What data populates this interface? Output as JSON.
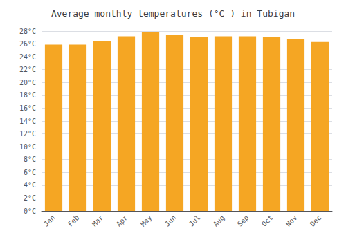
{
  "chart_data": {
    "type": "bar",
    "title": "Average monthly temperatures (°C ) in Tubigan",
    "categories": [
      "Jan",
      "Feb",
      "Mar",
      "Apr",
      "May",
      "Jun",
      "Jul",
      "Aug",
      "Sep",
      "Oct",
      "Nov",
      "Dec"
    ],
    "values": [
      25.9,
      25.9,
      26.5,
      27.2,
      27.8,
      27.4,
      27.1,
      27.2,
      27.2,
      27.1,
      26.8,
      26.3
    ],
    "color": "#F5A623",
    "ylim": [
      0,
      28
    ],
    "yticks": [
      {
        "value": 0,
        "label": "0°C"
      },
      {
        "value": 2,
        "label": "2°C"
      },
      {
        "value": 4,
        "label": "4°C"
      },
      {
        "value": 6,
        "label": "6°C"
      },
      {
        "value": 8,
        "label": "8°C"
      },
      {
        "value": 10,
        "label": "10°C"
      },
      {
        "value": 12,
        "label": "12°C"
      },
      {
        "value": 14,
        "label": "14°C"
      },
      {
        "value": 16,
        "label": "16°C"
      },
      {
        "value": 18,
        "label": "18°C"
      },
      {
        "value": 20,
        "label": "20°C"
      },
      {
        "value": 22,
        "label": "22°C"
      },
      {
        "value": 24,
        "label": "24°C"
      },
      {
        "value": 26,
        "label": "26°C"
      },
      {
        "value": 28,
        "label": "28°C"
      }
    ],
    "grid": true
  }
}
